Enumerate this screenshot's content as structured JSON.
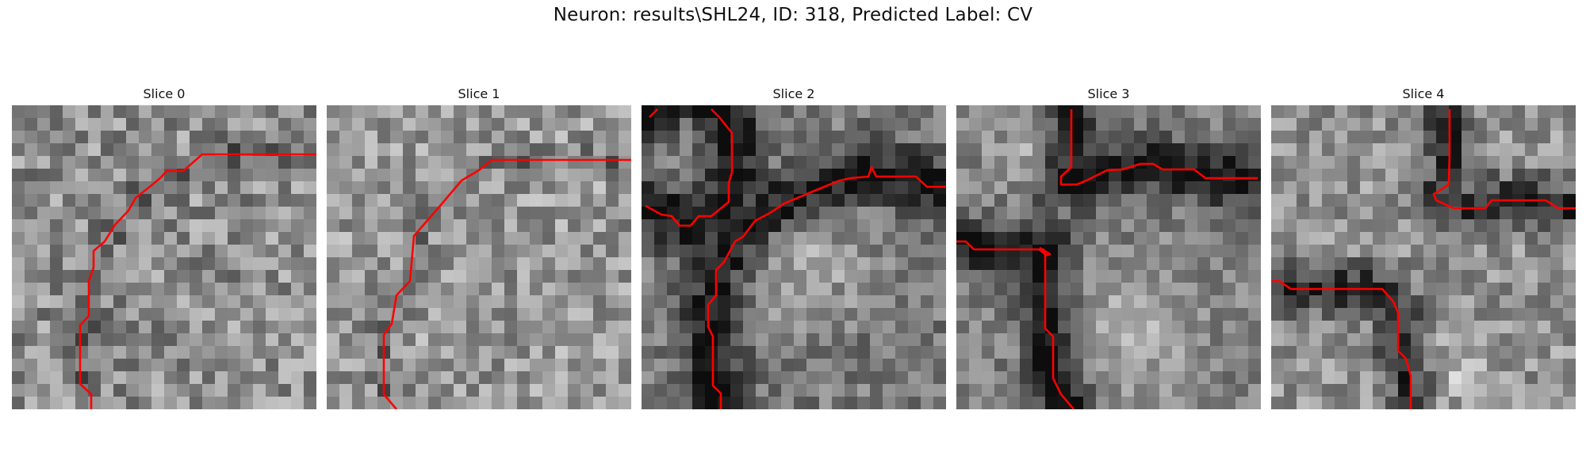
{
  "figure": {
    "title": "Neuron: results\\SHL24, ID: 318, Predicted Label: CV"
  },
  "panels": [
    {
      "title": "Slice 0"
    },
    {
      "title": "Slice 1"
    },
    {
      "title": "Slice 2"
    },
    {
      "title": "Slice 3"
    },
    {
      "title": "Slice 4"
    }
  ],
  "colors": {
    "background": "#ffffff",
    "trace": "#ff0000"
  }
}
